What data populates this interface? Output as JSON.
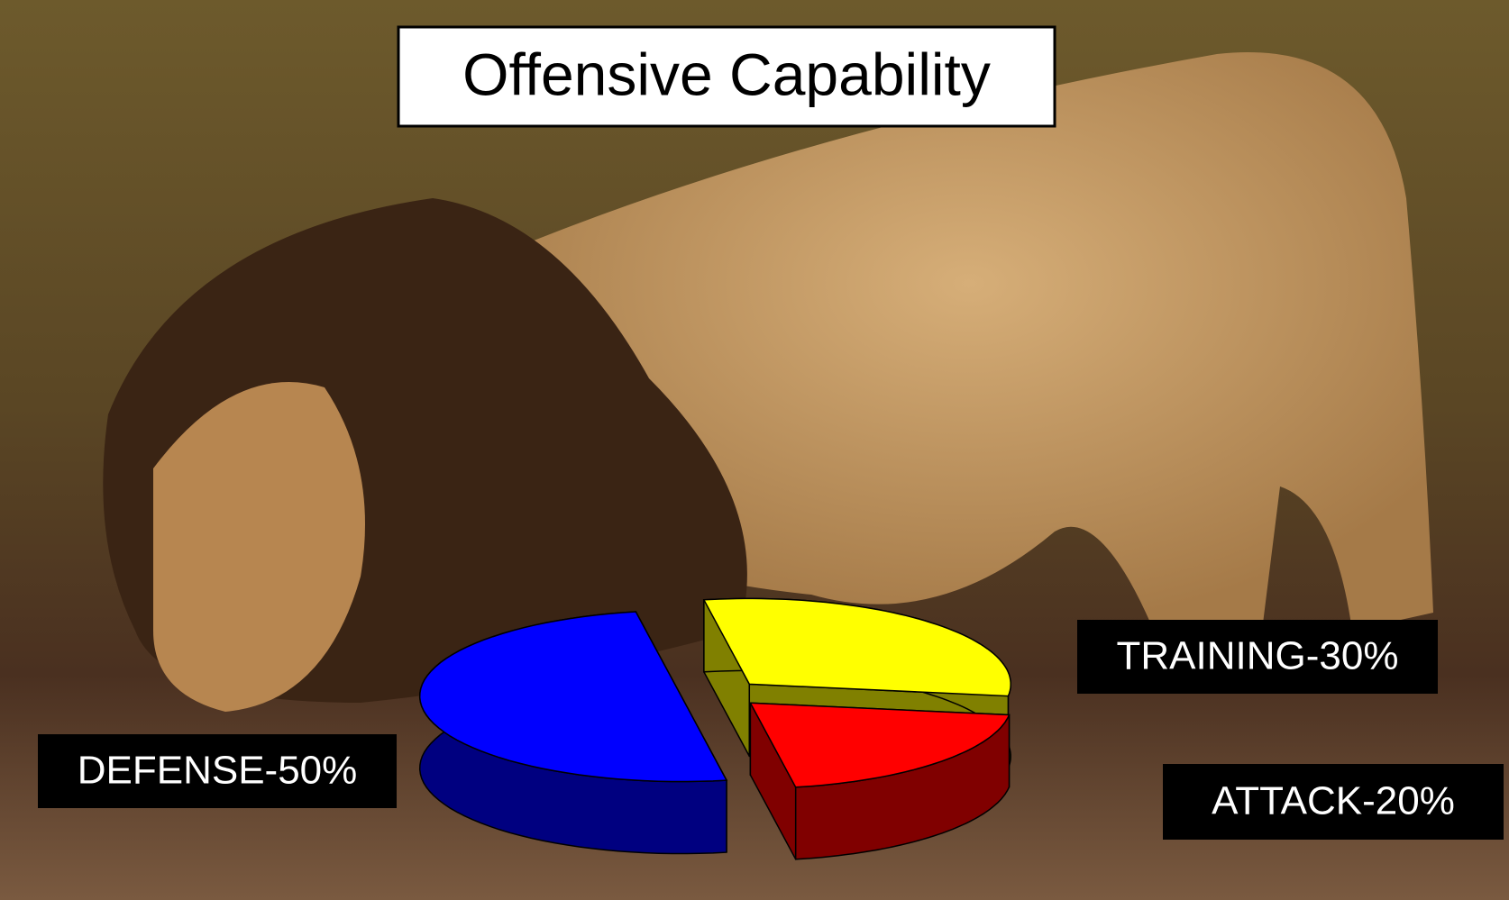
{
  "chart_data": {
    "type": "pie3d",
    "title": "Offensive Capability",
    "values": [
      50,
      30,
      20
    ],
    "value_labels": [
      "DEFENSE-50%",
      "TRAINING-30%",
      "ATTACK-20%"
    ],
    "colors": [
      "#0000ff",
      "#ffff00",
      "#ff0000"
    ]
  }
}
